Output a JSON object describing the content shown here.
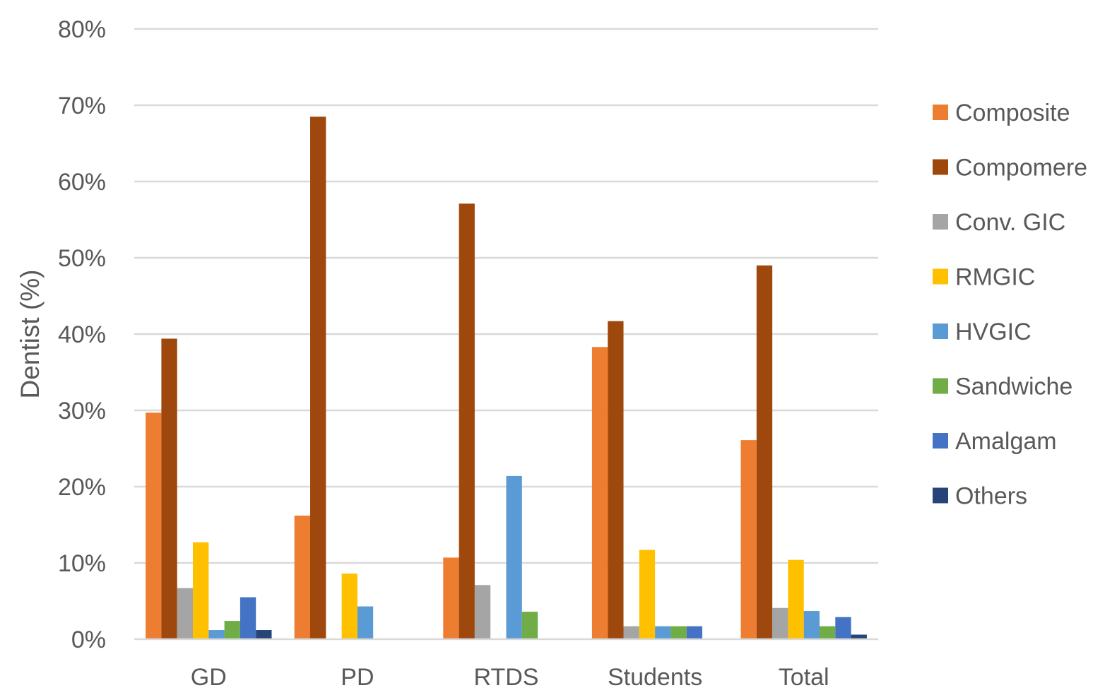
{
  "chart_data": {
    "type": "bar",
    "title": "",
    "xlabel": "",
    "ylabel": "Dentist (%)",
    "ylim": [
      0,
      80
    ],
    "y_ticks": [
      0,
      10,
      20,
      30,
      40,
      50,
      60,
      70,
      80
    ],
    "y_tick_labels": [
      "0%",
      "10%",
      "20%",
      "30%",
      "40%",
      "50%",
      "60%",
      "70%",
      "80%"
    ],
    "grid": true,
    "legend_position": "right",
    "categories": [
      "GD",
      "PD",
      "RTDS",
      "Students",
      "Total"
    ],
    "series": [
      {
        "name": "Composite",
        "color": "#ed7d31",
        "values": [
          29.7,
          16.2,
          10.7,
          38.3,
          26.1
        ]
      },
      {
        "name": "Compomere",
        "color": "#9e480e",
        "values": [
          39.4,
          68.5,
          57.1,
          41.7,
          49.0
        ]
      },
      {
        "name": "Conv. GIC",
        "color": "#a5a5a5",
        "values": [
          6.7,
          0,
          7.1,
          1.7,
          4.1
        ]
      },
      {
        "name": "RMGIC",
        "color": "#ffc000",
        "values": [
          12.7,
          8.6,
          0,
          11.7,
          10.4
        ]
      },
      {
        "name": "HVGIC",
        "color": "#5b9bd5",
        "values": [
          1.2,
          4.3,
          21.4,
          1.7,
          3.7
        ]
      },
      {
        "name": "Sandwiche",
        "color": "#70ad47",
        "values": [
          2.4,
          0,
          3.6,
          1.7,
          1.7
        ]
      },
      {
        "name": "Amalgam",
        "color": "#4472c4",
        "values": [
          5.5,
          0,
          0,
          1.7,
          2.9
        ]
      },
      {
        "name": "Others",
        "color": "#264478",
        "values": [
          1.2,
          0,
          0,
          0,
          0.6
        ]
      }
    ]
  }
}
